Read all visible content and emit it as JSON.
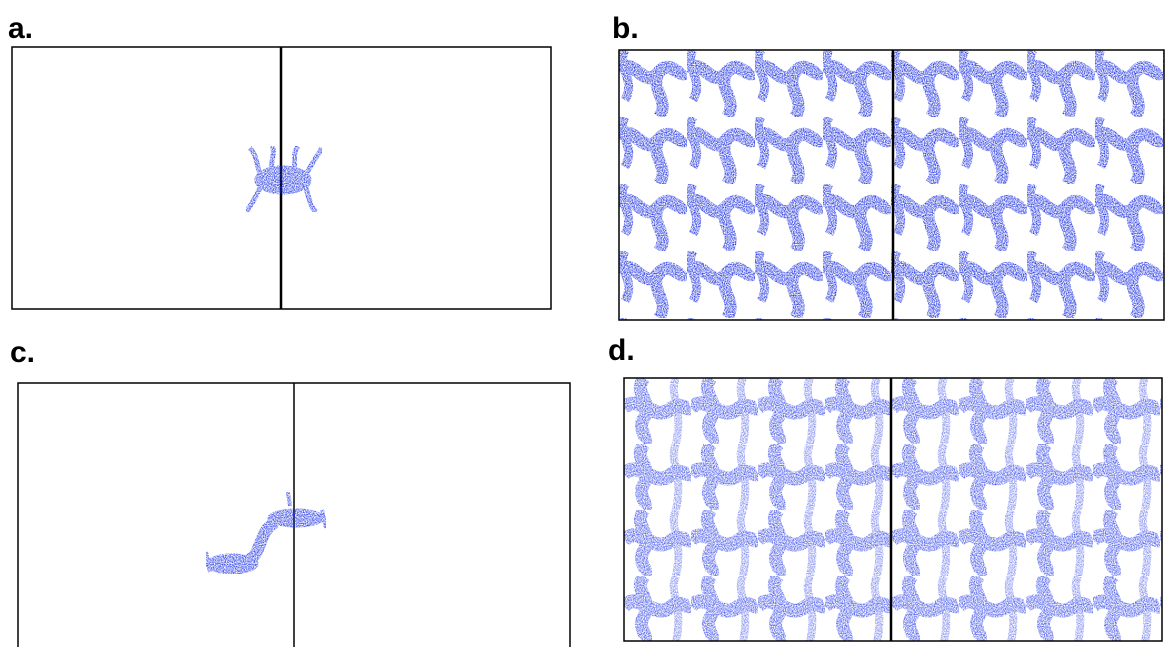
{
  "panels": [
    {
      "label": "a."
    },
    {
      "label": "b."
    },
    {
      "label": "c."
    },
    {
      "label": "d."
    }
  ]
}
